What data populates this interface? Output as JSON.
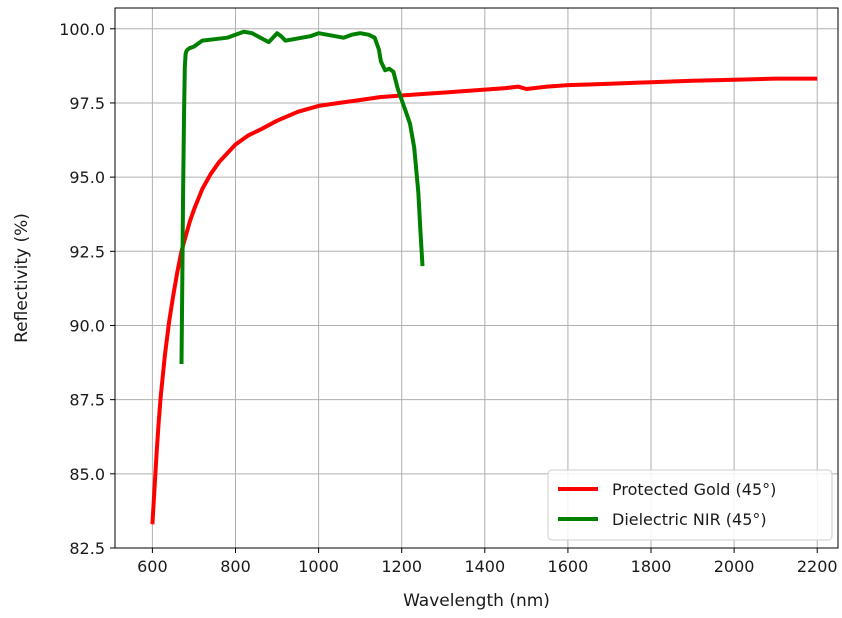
{
  "chart_data": {
    "type": "line",
    "title": "",
    "xlabel": "Wavelength (nm)",
    "ylabel": "Reflectivity (%)",
    "xlim": [
      510,
      2250
    ],
    "ylim": [
      82.5,
      100.7
    ],
    "xticks": [
      600,
      800,
      1000,
      1200,
      1400,
      1600,
      1800,
      2000,
      2200
    ],
    "yticks": [
      82.5,
      85.0,
      87.5,
      90.0,
      92.5,
      95.0,
      97.5,
      100.0
    ],
    "xtick_labels": [
      "600",
      "800",
      "1000",
      "1200",
      "1400",
      "1600",
      "1800",
      "2000",
      "2200"
    ],
    "ytick_labels": [
      "82.5",
      "85.0",
      "87.5",
      "90.0",
      "92.5",
      "95.0",
      "97.5",
      "100.0"
    ],
    "grid": true,
    "legend_position": "lower-right",
    "series": [
      {
        "name": "Protected Gold (45°)",
        "color": "#ff0000",
        "x": [
          600,
          605,
          610,
          615,
          620,
          630,
          640,
          650,
          660,
          670,
          680,
          690,
          700,
          720,
          740,
          760,
          780,
          800,
          830,
          860,
          900,
          950,
          1000,
          1050,
          1100,
          1150,
          1200,
          1250,
          1300,
          1350,
          1400,
          1450,
          1480,
          1500,
          1550,
          1600,
          1650,
          1700,
          1800,
          1900,
          2000,
          2100,
          2200
        ],
        "y": [
          83.3,
          84.5,
          85.7,
          86.7,
          87.6,
          89.0,
          90.1,
          91.0,
          91.8,
          92.5,
          93.0,
          93.5,
          93.9,
          94.6,
          95.1,
          95.5,
          95.8,
          96.1,
          96.4,
          96.6,
          96.9,
          97.2,
          97.4,
          97.5,
          97.6,
          97.7,
          97.75,
          97.8,
          97.85,
          97.9,
          97.95,
          98.0,
          98.05,
          97.97,
          98.05,
          98.1,
          98.12,
          98.15,
          98.2,
          98.25,
          98.28,
          98.32,
          98.32
        ]
      },
      {
        "name": "Dielectric NIR (45°)",
        "color": "#008000",
        "x": [
          670,
          672,
          674,
          676,
          678,
          680,
          682,
          685,
          690,
          700,
          710,
          720,
          750,
          780,
          800,
          820,
          840,
          860,
          880,
          890,
          900,
          910,
          920,
          940,
          960,
          980,
          1000,
          1020,
          1040,
          1060,
          1080,
          1100,
          1120,
          1135,
          1145,
          1150,
          1160,
          1170,
          1180,
          1190,
          1200,
          1210,
          1220,
          1230,
          1240,
          1245,
          1250
        ],
        "y": [
          88.7,
          91.5,
          94.5,
          97.0,
          98.7,
          99.15,
          99.25,
          99.3,
          99.35,
          99.4,
          99.5,
          99.6,
          99.65,
          99.7,
          99.8,
          99.9,
          99.85,
          99.7,
          99.55,
          99.7,
          99.85,
          99.75,
          99.6,
          99.65,
          99.7,
          99.75,
          99.85,
          99.8,
          99.75,
          99.7,
          99.8,
          99.85,
          99.8,
          99.7,
          99.3,
          98.9,
          98.6,
          98.65,
          98.55,
          98.0,
          97.6,
          97.2,
          96.8,
          96.0,
          94.5,
          93.2,
          92.0
        ]
      }
    ]
  }
}
